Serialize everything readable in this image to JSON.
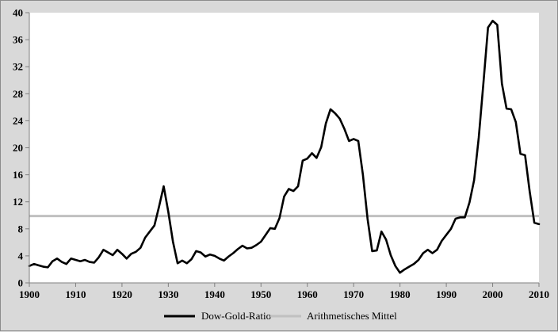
{
  "chart_data": {
    "type": "line",
    "title": "",
    "xlabel": "",
    "ylabel": "",
    "xlim": [
      1900,
      2010
    ],
    "ylim": [
      0,
      40
    ],
    "x_ticks": [
      "1900",
      "1910",
      "1920",
      "1930",
      "1940",
      "1950",
      "1960",
      "1970",
      "1980",
      "1990",
      "2000",
      "2010"
    ],
    "y_ticks": [
      "0",
      "4",
      "8",
      "12",
      "16",
      "20",
      "24",
      "28",
      "32",
      "36",
      "40"
    ],
    "grid": false,
    "legend_position": "bottom",
    "series": [
      {
        "name": "Dow-Gold-Ratio",
        "color": "#000000",
        "points": [
          [
            1900,
            2.5
          ],
          [
            1901,
            2.8
          ],
          [
            1902,
            2.6
          ],
          [
            1903,
            2.4
          ],
          [
            1904,
            2.3
          ],
          [
            1905,
            3.2
          ],
          [
            1906,
            3.6
          ],
          [
            1907,
            3.1
          ],
          [
            1908,
            2.8
          ],
          [
            1909,
            3.6
          ],
          [
            1910,
            3.4
          ],
          [
            1911,
            3.2
          ],
          [
            1912,
            3.4
          ],
          [
            1913,
            3.1
          ],
          [
            1914,
            3.0
          ],
          [
            1915,
            3.8
          ],
          [
            1916,
            4.9
          ],
          [
            1917,
            4.5
          ],
          [
            1918,
            4.1
          ],
          [
            1919,
            4.9
          ],
          [
            1920,
            4.3
          ],
          [
            1921,
            3.6
          ],
          [
            1922,
            4.3
          ],
          [
            1923,
            4.6
          ],
          [
            1924,
            5.2
          ],
          [
            1925,
            6.7
          ],
          [
            1926,
            7.6
          ],
          [
            1927,
            8.5
          ],
          [
            1928,
            11.3
          ],
          [
            1929,
            14.3
          ],
          [
            1930,
            10.5
          ],
          [
            1931,
            6.1
          ],
          [
            1932,
            2.9
          ],
          [
            1933,
            3.3
          ],
          [
            1934,
            2.9
          ],
          [
            1935,
            3.5
          ],
          [
            1936,
            4.7
          ],
          [
            1937,
            4.5
          ],
          [
            1938,
            3.9
          ],
          [
            1939,
            4.2
          ],
          [
            1940,
            4.0
          ],
          [
            1941,
            3.6
          ],
          [
            1942,
            3.3
          ],
          [
            1943,
            3.9
          ],
          [
            1944,
            4.4
          ],
          [
            1945,
            5.0
          ],
          [
            1946,
            5.5
          ],
          [
            1947,
            5.1
          ],
          [
            1948,
            5.2
          ],
          [
            1949,
            5.6
          ],
          [
            1950,
            6.1
          ],
          [
            1951,
            7.1
          ],
          [
            1952,
            8.1
          ],
          [
            1953,
            8.0
          ],
          [
            1954,
            9.6
          ],
          [
            1955,
            12.8
          ],
          [
            1956,
            13.9
          ],
          [
            1957,
            13.6
          ],
          [
            1958,
            14.3
          ],
          [
            1959,
            18.1
          ],
          [
            1960,
            18.4
          ],
          [
            1961,
            19.2
          ],
          [
            1962,
            18.5
          ],
          [
            1963,
            20.1
          ],
          [
            1964,
            23.6
          ],
          [
            1965,
            25.7
          ],
          [
            1966,
            25.1
          ],
          [
            1967,
            24.3
          ],
          [
            1968,
            22.8
          ],
          [
            1969,
            21.0
          ],
          [
            1970,
            21.3
          ],
          [
            1971,
            21.0
          ],
          [
            1972,
            16.0
          ],
          [
            1973,
            9.5
          ],
          [
            1974,
            4.7
          ],
          [
            1975,
            4.8
          ],
          [
            1976,
            7.6
          ],
          [
            1977,
            6.4
          ],
          [
            1978,
            4.1
          ],
          [
            1979,
            2.5
          ],
          [
            1980,
            1.5
          ],
          [
            1981,
            2.0
          ],
          [
            1982,
            2.4
          ],
          [
            1983,
            2.8
          ],
          [
            1984,
            3.4
          ],
          [
            1985,
            4.4
          ],
          [
            1986,
            4.9
          ],
          [
            1987,
            4.4
          ],
          [
            1988,
            4.9
          ],
          [
            1989,
            6.2
          ],
          [
            1990,
            7.1
          ],
          [
            1991,
            8.0
          ],
          [
            1992,
            9.5
          ],
          [
            1993,
            9.7
          ],
          [
            1994,
            9.7
          ],
          [
            1995,
            11.9
          ],
          [
            1996,
            15.2
          ],
          [
            1997,
            21.5
          ],
          [
            1998,
            29.5
          ],
          [
            1999,
            37.8
          ],
          [
            2000,
            38.8
          ],
          [
            2001,
            38.2
          ],
          [
            2002,
            29.5
          ],
          [
            2003,
            25.8
          ],
          [
            2004,
            25.7
          ],
          [
            2005,
            23.8
          ],
          [
            2006,
            19.1
          ],
          [
            2007,
            18.9
          ],
          [
            2008,
            13.5
          ],
          [
            2009,
            8.9
          ],
          [
            2010,
            8.7
          ]
        ]
      },
      {
        "name": "Arithmetisches Mittel",
        "color": "#c0c0c0",
        "points": [
          [
            1900,
            9.9
          ],
          [
            2010,
            9.9
          ]
        ]
      }
    ]
  }
}
